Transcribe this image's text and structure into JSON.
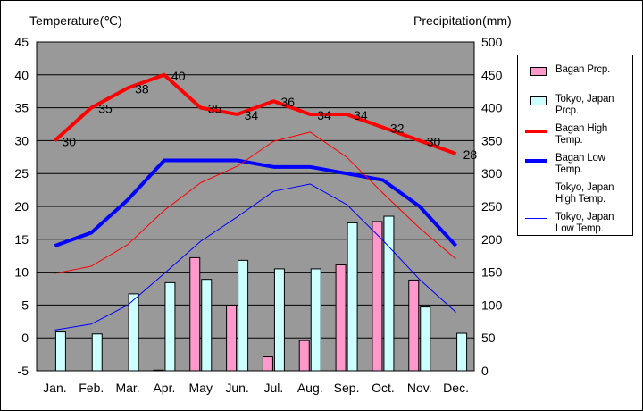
{
  "left_axis_title": "Temperature(℃)",
  "right_axis_title": "Precipitation(mm)",
  "legend": [
    {
      "label": "Bagan Prcp.",
      "kind": "box",
      "color": "#FF99CC"
    },
    {
      "label": "Tokyo, Japan Prcp.",
      "kind": "box",
      "color": "#CCFFFF"
    },
    {
      "label": "Bagan High Temp.",
      "kind": "line",
      "color": "#FF0000"
    },
    {
      "label": "Bagan Low Temp.",
      "kind": "line",
      "color": "#0000FF"
    },
    {
      "label": "Tokyo, Japan High Temp.",
      "kind": "thinline",
      "color": "#FF0000"
    },
    {
      "label": "Tokyo, Japan Low Temp.",
      "kind": "thinline",
      "color": "#0000FF"
    }
  ],
  "chart_data": {
    "type": "bar+line",
    "categories": [
      "Jan.",
      "Feb.",
      "Mar.",
      "Apr.",
      "May",
      "Jun.",
      "Jul.",
      "Aug.",
      "Sep.",
      "Oct.",
      "Nov.",
      "Dec."
    ],
    "y_left": {
      "label": "Temperature(℃)",
      "range": [
        -5,
        45
      ],
      "ticks": [
        -5,
        0,
        5,
        10,
        15,
        20,
        25,
        30,
        35,
        40,
        45
      ]
    },
    "y_right": {
      "label": "Precipitation(mm)",
      "range": [
        0,
        500
      ],
      "ticks": [
        0,
        50,
        100,
        150,
        200,
        250,
        300,
        350,
        400,
        450,
        500
      ]
    },
    "plot_background": "#999999",
    "series": [
      {
        "name": "Bagan Prcp.",
        "type": "bar",
        "axis": "right",
        "color": "#FF99CC",
        "values": [
          0,
          0,
          0,
          1,
          172,
          99,
          21,
          46,
          161,
          227,
          138,
          0
        ]
      },
      {
        "name": "Tokyo, Japan Prcp.",
        "type": "bar",
        "axis": "right",
        "color": "#CCFFFF",
        "values": [
          59,
          56,
          117,
          134,
          139,
          168,
          155,
          155,
          225,
          235,
          97,
          57
        ]
      },
      {
        "name": "Bagan High Temp.",
        "type": "line",
        "axis": "left",
        "color": "#FF0000",
        "width": "thick",
        "values": [
          30,
          35,
          38,
          40,
          35,
          34,
          36,
          34,
          34,
          32,
          30,
          28
        ],
        "labeled": true
      },
      {
        "name": "Bagan Low Temp.",
        "type": "line",
        "axis": "left",
        "color": "#0000FF",
        "width": "thick",
        "values": [
          14,
          16,
          21,
          27,
          27,
          27,
          26,
          26,
          25,
          24,
          20,
          14
        ]
      },
      {
        "name": "Tokyo, Japan High Temp.",
        "type": "line",
        "axis": "left",
        "color": "#FF0000",
        "width": "thin",
        "values": [
          9.8,
          10.9,
          14.2,
          19.4,
          23.6,
          26.1,
          29.9,
          31.3,
          27.5,
          22.0,
          16.7,
          12.0
        ]
      },
      {
        "name": "Tokyo, Japan Low Temp.",
        "type": "line",
        "axis": "left",
        "color": "#0000FF",
        "width": "thin",
        "values": [
          1.2,
          2.1,
          5.0,
          9.8,
          14.7,
          18.4,
          22.3,
          23.4,
          20.3,
          14.8,
          8.9,
          3.9
        ]
      }
    ],
    "grid": "horizontal",
    "legend_position": "right"
  }
}
